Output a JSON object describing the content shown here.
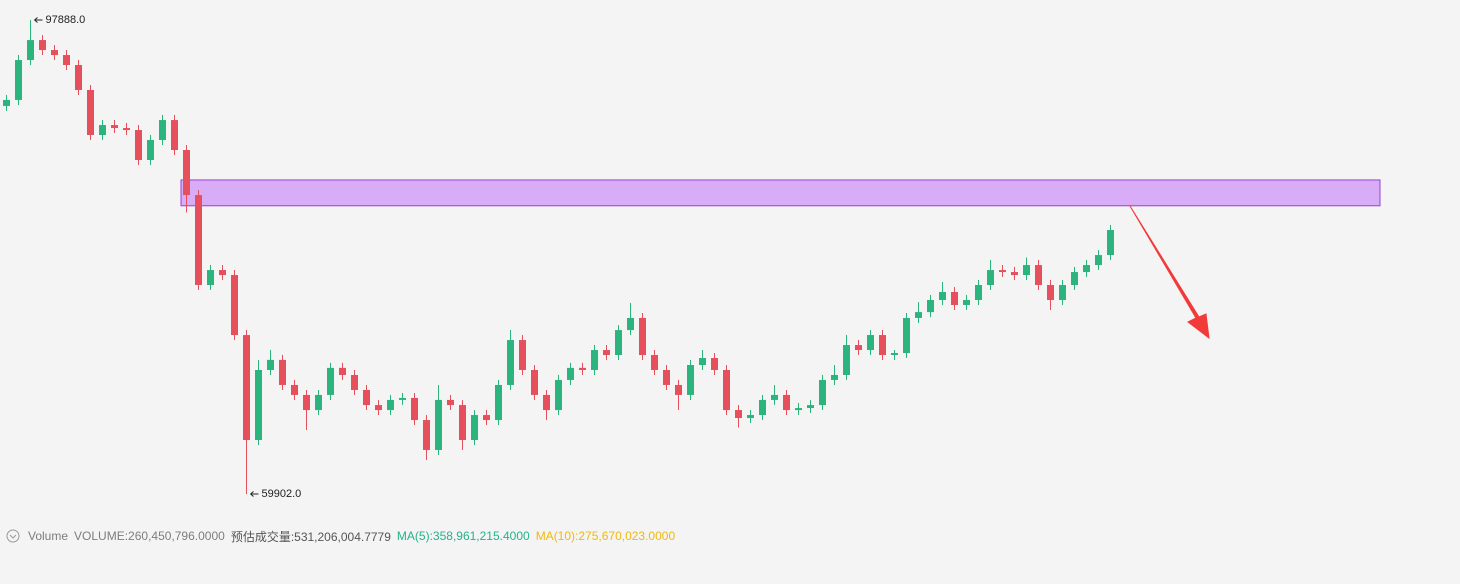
{
  "chart_data": {
    "type": "candlestick",
    "up_color": "#2cb47f",
    "down_color": "#e5505c",
    "open": [
      91000,
      91480,
      94680,
      96280,
      95480,
      95080,
      94280,
      92280,
      88670,
      89470,
      89230,
      89070,
      86670,
      88270,
      89870,
      87470,
      83860,
      76650,
      77850,
      77450,
      72640,
      64230,
      69840,
      70650,
      68640,
      67840,
      66630,
      67840,
      70010,
      69440,
      68240,
      67030,
      66630,
      67440,
      67600,
      65830,
      63430,
      67440,
      67030,
      64230,
      66230,
      65830,
      68640,
      72240,
      69840,
      67840,
      66630,
      69040,
      70010,
      69840,
      71440,
      71040,
      73040,
      74010,
      71040,
      69840,
      68640,
      67840,
      70240,
      70800,
      69840,
      66630,
      65990,
      66230,
      67440,
      67840,
      66630,
      66790,
      67030,
      69040,
      69440,
      71840,
      71440,
      72640,
      71040,
      71200,
      74010,
      74480,
      75450,
      76090,
      75050,
      75450,
      76650,
      77850,
      77690,
      77450,
      78250,
      76650,
      75450,
      76650,
      77690,
      78250,
      79050
    ],
    "high": [
      91880,
      95080,
      97888,
      96680,
      95880,
      95480,
      94680,
      92680,
      89870,
      89870,
      89630,
      89470,
      88670,
      90270,
      90270,
      87870,
      84260,
      78250,
      78250,
      77850,
      73040,
      70640,
      71450,
      71050,
      69040,
      68240,
      68240,
      70410,
      70410,
      69840,
      68640,
      67430,
      67840,
      68000,
      68000,
      66230,
      68640,
      67840,
      67430,
      66630,
      66630,
      69040,
      73040,
      72640,
      70240,
      68240,
      69440,
      70410,
      70410,
      71840,
      71840,
      73440,
      75210,
      74410,
      71440,
      70240,
      69040,
      70640,
      71440,
      71200,
      70240,
      67030,
      66630,
      67840,
      68640,
      68240,
      67190,
      67430,
      69440,
      70240,
      72640,
      72240,
      73040,
      73040,
      71440,
      74410,
      75280,
      75850,
      76890,
      76490,
      75850,
      77050,
      78650,
      78250,
      78090,
      78850,
      78650,
      77050,
      77050,
      78090,
      78650,
      79450,
      81460
    ],
    "low": [
      90600,
      91080,
      94280,
      95080,
      94680,
      93880,
      91880,
      88270,
      88270,
      88830,
      88670,
      86270,
      86270,
      87870,
      87070,
      82460,
      76250,
      76250,
      77050,
      72240,
      59902,
      63830,
      69440,
      68240,
      67440,
      65030,
      66230,
      67440,
      69040,
      67840,
      66630,
      66230,
      66230,
      67040,
      65430,
      62630,
      63030,
      66630,
      63430,
      63830,
      65430,
      65430,
      68240,
      69440,
      67440,
      65830,
      66230,
      68640,
      69440,
      69440,
      70640,
      70640,
      72640,
      70640,
      69440,
      68240,
      66630,
      67440,
      69840,
      69440,
      66230,
      65230,
      65590,
      65830,
      67040,
      66230,
      66230,
      66390,
      66630,
      68640,
      69040,
      71040,
      71040,
      70640,
      70640,
      70800,
      73610,
      74080,
      75050,
      74650,
      74650,
      75050,
      76250,
      77290,
      77050,
      77050,
      76250,
      74650,
      75050,
      76250,
      77290,
      77850,
      78650
    ],
    "close": [
      91480,
      94680,
      96280,
      95480,
      95080,
      94280,
      92280,
      88670,
      89470,
      89230,
      89070,
      86670,
      88270,
      89870,
      87470,
      83860,
      76650,
      77850,
      77450,
      72640,
      64230,
      69840,
      70650,
      68640,
      67840,
      66630,
      67840,
      70010,
      69440,
      68240,
      67030,
      66630,
      67440,
      67600,
      65830,
      63430,
      67440,
      67030,
      64230,
      66230,
      65830,
      68640,
      72240,
      69840,
      67840,
      66630,
      69040,
      70010,
      69840,
      71440,
      71040,
      73040,
      74010,
      71040,
      69840,
      68640,
      67840,
      70240,
      70800,
      69840,
      66630,
      65990,
      66230,
      67440,
      67840,
      66630,
      66790,
      67030,
      69040,
      69440,
      71840,
      71440,
      72640,
      71040,
      71200,
      74010,
      74480,
      75450,
      76090,
      75050,
      75450,
      76650,
      77850,
      77690,
      77450,
      78250,
      76650,
      75450,
      76650,
      77690,
      78250,
      79050,
      81060
    ],
    "high_label": {
      "value": 97888,
      "label": "97888.0"
    },
    "low_label": {
      "value": 59902,
      "label": "59902.0"
    },
    "zone": {
      "high": 85070,
      "low": 83000,
      "color": "#d8acf7",
      "border": "#9a3fd4"
    },
    "volume_legend": {
      "name": "Volume",
      "items": [
        {
          "text": "VOLUME:260,450,796.0000",
          "color": "#7d7d7d"
        },
        {
          "text": "预估成交量:531,206,004.7779",
          "color": "#555555"
        },
        {
          "text": "MA(5):358,961,215.4000",
          "color": "#22b38a"
        },
        {
          "text": "MA(10):275,670,023.0000",
          "color": "#f0b90b"
        }
      ]
    }
  }
}
